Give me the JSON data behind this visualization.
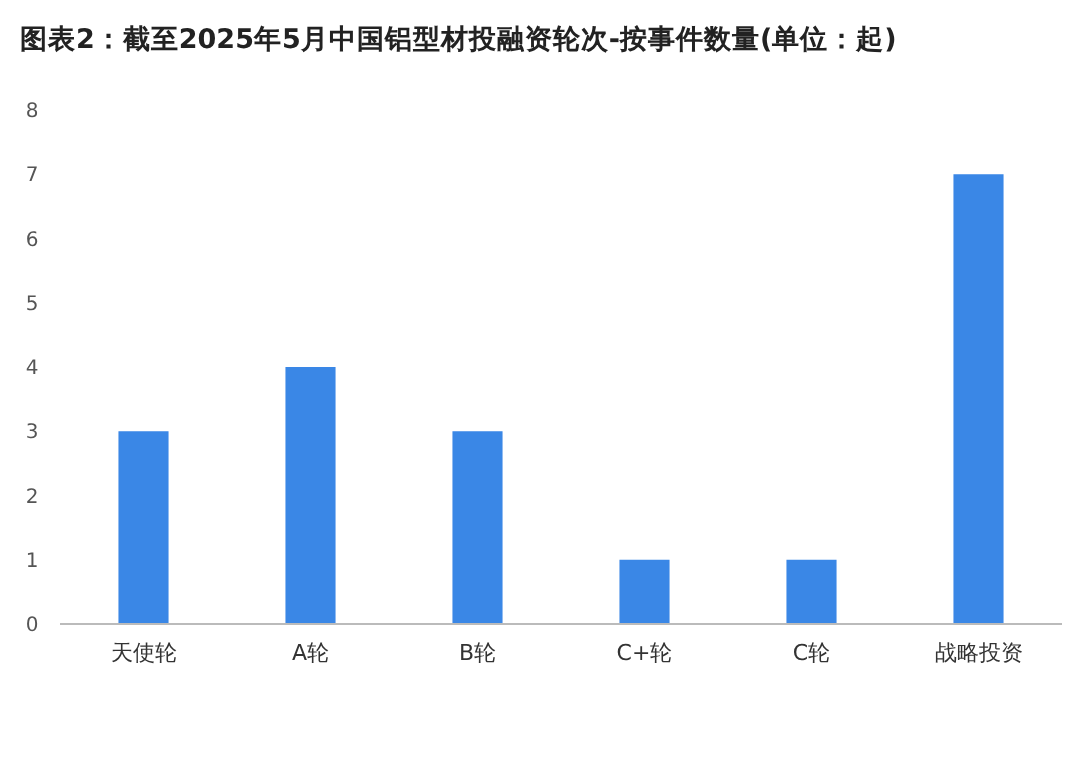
{
  "chart_data": {
    "type": "bar",
    "title": "图表2：截至2025年5月中国铝型材投融资轮次-按事件数量(单位：起)",
    "categories": [
      "天使轮",
      "A轮",
      "B轮",
      "C+轮",
      "C轮",
      "战略投资"
    ],
    "values": [
      3,
      4,
      3,
      1,
      1,
      7
    ],
    "color": "#3a87e6",
    "ylim": [
      0,
      8
    ],
    "yticks": [
      0,
      1,
      2,
      3,
      4,
      5,
      6,
      7,
      8
    ],
    "grid": false
  }
}
